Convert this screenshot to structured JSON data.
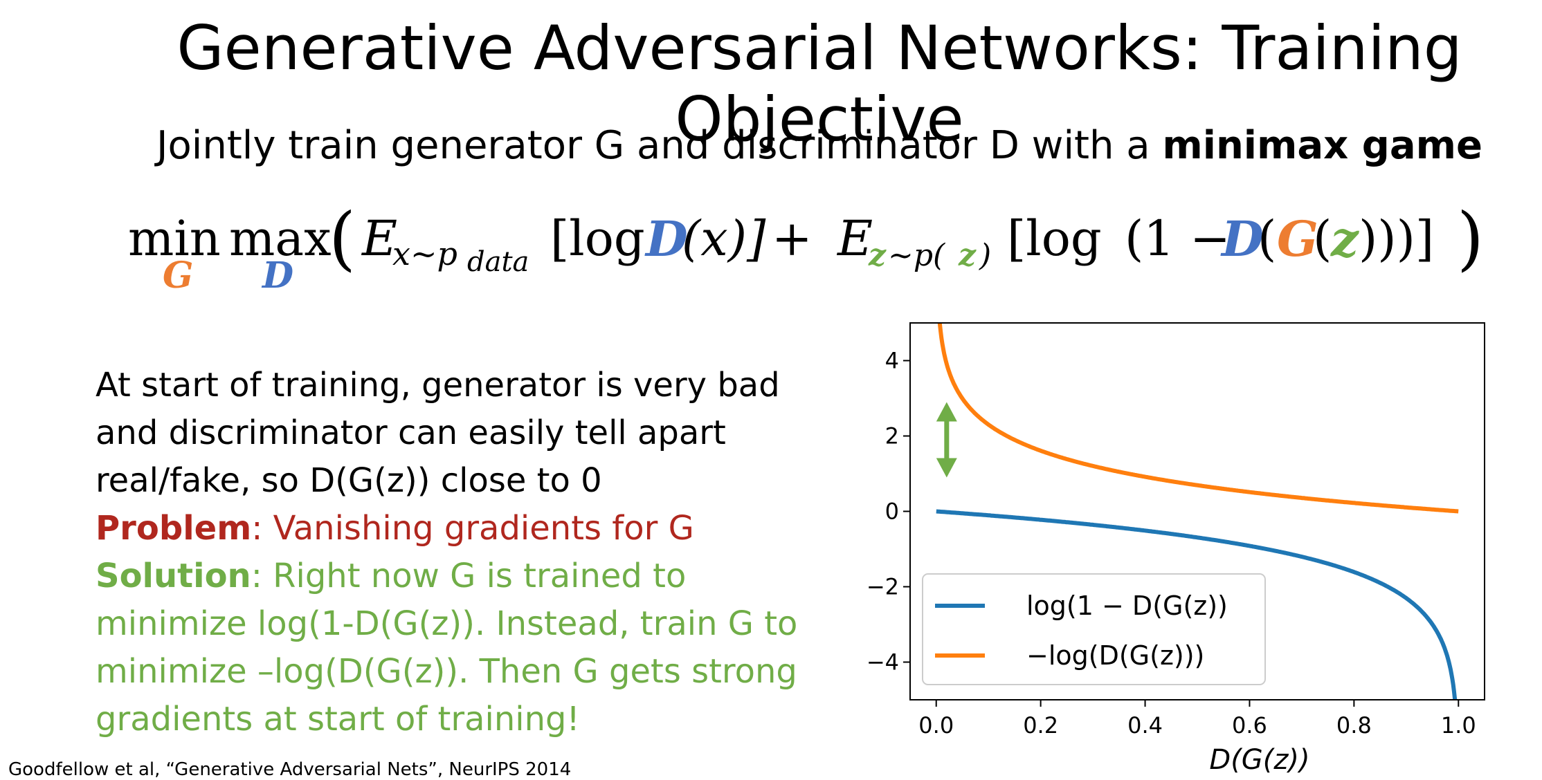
{
  "slide": {
    "title": "Generative Adversarial Networks: Training Objective",
    "subtitle_plain": "Jointly train generator G and discriminator D with a ",
    "subtitle_bold": "minimax game",
    "formula": {
      "min": "min",
      "min_sub": "G",
      "max": "max",
      "max_sub": "D",
      "open_paren": "(",
      "E1": "E",
      "E1_sub": "x~p",
      "E1_subsub": "data",
      "term1_open": "[log ",
      "D1": "D",
      "term1_arg": "(x)]",
      "plus": " + ",
      "E2": "E",
      "E2_sub_z": "z",
      "E2_sub_rest": "~p(",
      "E2_sub_z2": "z",
      "E2_sub_close": ")",
      "term2_open": "[log",
      "one_minus": "(1 − ",
      "D2": "D",
      "paren_a": "(",
      "G": "G",
      "paren_b": "(",
      "z": "z",
      "closing": ")))]",
      "final_paren": ")"
    },
    "body": {
      "line1": "At start of training, generator is very bad",
      "line2": "and discriminator can easily tell apart",
      "line3": "real/fake, so D(G(z)) close to 0",
      "problem_label": "Problem",
      "problem_text": ": Vanishing gradients for G",
      "solution_label": "Solution",
      "solution_text1": ": Right now G is trained to",
      "solution_text2": "minimize log(1-D(G(z)). Instead, train G to",
      "solution_text3": "minimize –log(D(G(z)). Then G gets strong",
      "solution_text4": "gradients at start of training!"
    },
    "citation": "Goodfellow et al, “Generative Adversarial Nets”, NeurIPS 2014",
    "colors": {
      "D": "#4472c4",
      "G": "#ed7d31",
      "z": "#70ad47",
      "problem": "#b0271e",
      "solution": "#70ad47"
    }
  },
  "chart_data": {
    "type": "line",
    "xlabel": "D(G(z))",
    "xlim": [
      -0.05,
      1.05
    ],
    "ylim": [
      -5,
      5
    ],
    "xticks": [
      0.0,
      0.2,
      0.4,
      0.6,
      0.8,
      1.0
    ],
    "xtick_labels": [
      "0.0",
      "0.2",
      "0.4",
      "0.6",
      "0.8",
      "1.0"
    ],
    "yticks": [
      -4,
      -2,
      0,
      2,
      4
    ],
    "ytick_labels": [
      "−4",
      "−2",
      "0",
      "2",
      "4"
    ],
    "legend_position": "lower-left",
    "series": [
      {
        "name": "log(1 − D(G(z))",
        "color": "#1f77b4",
        "function": "log(1-x)"
      },
      {
        "name": "−log(D(G(z)))",
        "color": "#ff7f0e",
        "function": "-log(x)"
      }
    ],
    "annotation": {
      "type": "double-arrow",
      "color": "#70ad47",
      "x": 0.02,
      "y_range": [
        0.9,
        2.9
      ]
    }
  }
}
